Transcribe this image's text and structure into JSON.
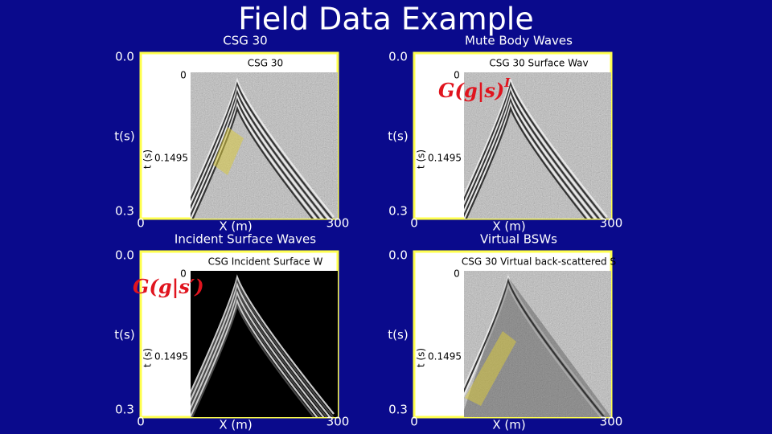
{
  "title": "Field Data Example",
  "panels": [
    {
      "caption": "CSG 30",
      "inner_title": "CSG 30",
      "y_top": "0.0",
      "y_label": "t(s)",
      "y_bottom": "0.3",
      "x_left": "0",
      "x_label": "X (m)",
      "x_right": "300",
      "inner_zero": "0",
      "inner_axis": "t (s)",
      "inner_tick": "0.1495"
    },
    {
      "caption": "Mute Body Waves",
      "inner_title": "CSG 30 Surface Wav",
      "y_top": "0.0",
      "y_label": "t(s)",
      "y_bottom": "0.3",
      "x_left": "0",
      "x_label": "X (m)",
      "x_right": "300",
      "inner_zero": "0",
      "inner_axis": "t (s)",
      "inner_tick": "0.1495",
      "formula": {
        "main": "G(g|s)",
        "sup": "I"
      }
    },
    {
      "caption": "Incident Surface Waves",
      "inner_title": "CSG Incident Surface W",
      "y_top": "0.0",
      "y_label": "t(s)",
      "y_bottom": "0.3",
      "x_left": "0",
      "x_label": "X (m)",
      "x_right": "300",
      "inner_zero": "0",
      "inner_axis": "t (s)",
      "inner_tick": "0.1495",
      "formula": {
        "main": "G(g|s′)"
      }
    },
    {
      "caption": "Virtual BSWs",
      "inner_title": "CSG 30 Virtual back-scattered S",
      "y_top": "0.0",
      "y_label": "t(s)",
      "y_bottom": "0.3",
      "x_left": "0",
      "x_label": "X (m)",
      "x_right": "300",
      "inner_zero": "0",
      "inner_axis": "t (s)",
      "inner_tick": "0.1495"
    }
  ]
}
